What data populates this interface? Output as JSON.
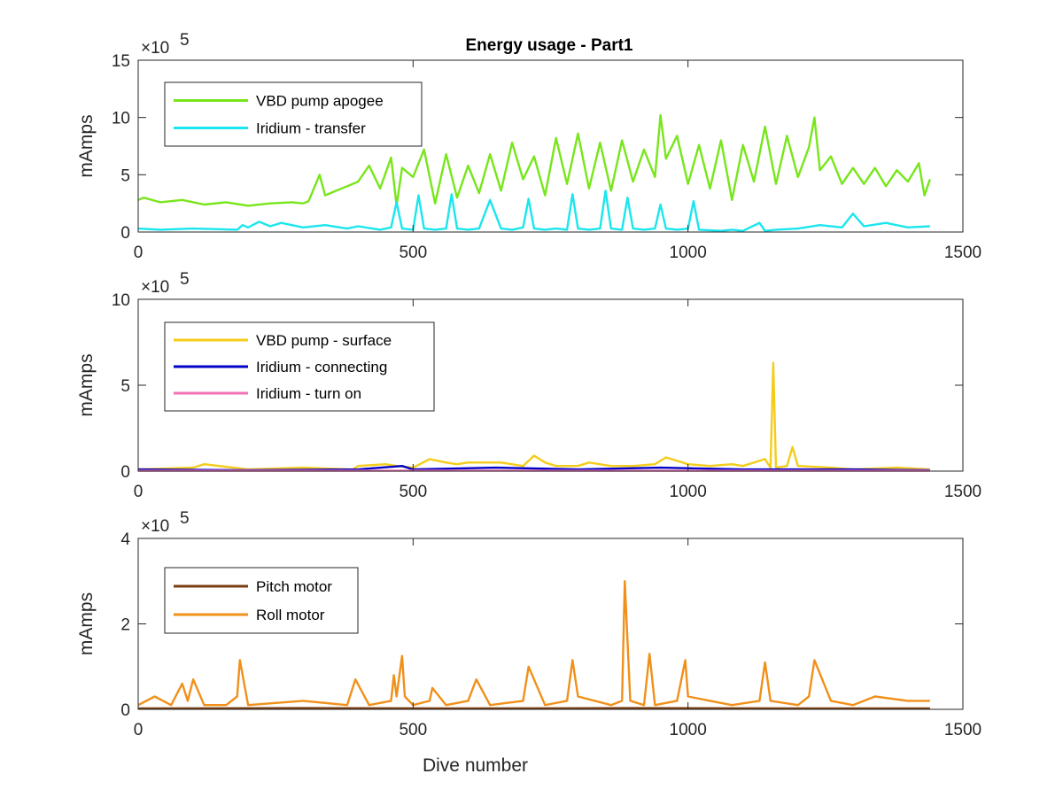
{
  "figure_title": "Energy usage - Part1",
  "chart_data": [
    {
      "type": "line",
      "title": "Energy usage - Part1",
      "xlabel": "",
      "ylabel": "mAmps",
      "exponent_label": "×10",
      "exponent_power": "5",
      "xlim": [
        0,
        1500
      ],
      "ylim": [
        0,
        15
      ],
      "x_ticks": [
        0,
        500,
        1000,
        1500
      ],
      "x_tick_labels": [
        "0",
        "500",
        "1000",
        "1500"
      ],
      "y_ticks": [
        0,
        5,
        10,
        15
      ],
      "y_tick_labels": [
        "0",
        "5",
        "10",
        "15"
      ],
      "legend_position": "top-left",
      "series": [
        {
          "name": "VBD pump apogee",
          "color": "#77e61a",
          "x": [
            0,
            10,
            40,
            80,
            120,
            160,
            200,
            240,
            280,
            300,
            310,
            330,
            340,
            360,
            380,
            400,
            420,
            440,
            460,
            470,
            480,
            500,
            520,
            540,
            560,
            580,
            600,
            620,
            640,
            660,
            680,
            700,
            720,
            740,
            760,
            780,
            800,
            820,
            840,
            860,
            880,
            900,
            920,
            940,
            950,
            960,
            980,
            1000,
            1020,
            1040,
            1060,
            1080,
            1100,
            1120,
            1140,
            1160,
            1180,
            1200,
            1220,
            1230,
            1240,
            1260,
            1280,
            1300,
            1320,
            1340,
            1360,
            1380,
            1400,
            1420,
            1430,
            1440
          ],
          "values": [
            2.8,
            3.0,
            2.6,
            2.8,
            2.4,
            2.6,
            2.3,
            2.5,
            2.6,
            2.5,
            2.7,
            5.0,
            3.2,
            3.6,
            4.0,
            4.4,
            5.8,
            3.8,
            6.5,
            2.3,
            5.6,
            4.8,
            7.2,
            2.5,
            6.8,
            3.0,
            5.8,
            3.4,
            6.8,
            3.6,
            7.8,
            4.6,
            6.6,
            3.2,
            8.2,
            4.2,
            8.6,
            3.8,
            7.8,
            3.6,
            8.0,
            4.4,
            7.2,
            4.8,
            10.2,
            6.4,
            8.4,
            4.2,
            7.6,
            3.8,
            8.0,
            2.8,
            7.6,
            4.4,
            9.2,
            4.2,
            8.4,
            4.8,
            7.4,
            10.0,
            5.4,
            6.6,
            4.2,
            5.6,
            4.2,
            5.6,
            4.0,
            5.4,
            4.4,
            6.0,
            3.2,
            4.6
          ]
        },
        {
          "name": "Iridium - transfer",
          "color": "#1ae6ee",
          "x": [
            0,
            40,
            100,
            180,
            190,
            200,
            220,
            240,
            260,
            300,
            340,
            380,
            400,
            440,
            460,
            470,
            480,
            500,
            510,
            520,
            540,
            560,
            570,
            580,
            600,
            620,
            640,
            660,
            680,
            700,
            710,
            720,
            740,
            760,
            780,
            790,
            800,
            820,
            840,
            850,
            860,
            880,
            890,
            900,
            920,
            940,
            950,
            960,
            980,
            1000,
            1010,
            1020,
            1060,
            1080,
            1100,
            1130,
            1140,
            1160,
            1200,
            1240,
            1280,
            1300,
            1320,
            1360,
            1400,
            1440
          ],
          "values": [
            0.3,
            0.2,
            0.3,
            0.2,
            0.6,
            0.4,
            0.9,
            0.5,
            0.8,
            0.4,
            0.6,
            0.3,
            0.5,
            0.2,
            0.4,
            2.6,
            0.3,
            0.2,
            3.2,
            0.3,
            0.2,
            0.3,
            3.3,
            0.3,
            0.2,
            0.3,
            2.8,
            0.3,
            0.2,
            0.4,
            2.9,
            0.3,
            0.2,
            0.3,
            0.2,
            3.3,
            0.3,
            0.2,
            0.3,
            3.6,
            0.3,
            0.2,
            3.0,
            0.3,
            0.2,
            0.3,
            2.4,
            0.3,
            0.2,
            0.3,
            2.7,
            0.2,
            0.1,
            0.2,
            0.1,
            0.8,
            0.1,
            0.2,
            0.3,
            0.6,
            0.4,
            1.6,
            0.5,
            0.8,
            0.4,
            0.5
          ]
        }
      ]
    },
    {
      "type": "line",
      "title": "",
      "xlabel": "",
      "ylabel": "mAmps",
      "exponent_label": "×10",
      "exponent_power": "5",
      "xlim": [
        0,
        1500
      ],
      "ylim": [
        0,
        10
      ],
      "x_ticks": [
        0,
        500,
        1000,
        1500
      ],
      "x_tick_labels": [
        "0",
        "500",
        "1000",
        "1500"
      ],
      "y_ticks": [
        0,
        5,
        10
      ],
      "y_tick_labels": [
        "0",
        "5",
        "10"
      ],
      "legend_position": "top-left",
      "series": [
        {
          "name": "VBD pump - surface",
          "color": "#f5cc1a",
          "x": [
            0,
            100,
            120,
            200,
            300,
            390,
            400,
            450,
            470,
            500,
            530,
            560,
            580,
            600,
            640,
            660,
            700,
            720,
            740,
            760,
            800,
            820,
            860,
            900,
            940,
            960,
            1000,
            1040,
            1080,
            1100,
            1140,
            1150,
            1155,
            1160,
            1180,
            1190,
            1200,
            1260,
            1300,
            1380,
            1440
          ],
          "values": [
            0.1,
            0.2,
            0.4,
            0.1,
            0.2,
            0.1,
            0.3,
            0.4,
            0.3,
            0.2,
            0.7,
            0.5,
            0.4,
            0.5,
            0.5,
            0.5,
            0.3,
            0.9,
            0.5,
            0.3,
            0.3,
            0.5,
            0.3,
            0.3,
            0.4,
            0.8,
            0.4,
            0.3,
            0.4,
            0.3,
            0.7,
            0.2,
            6.3,
            0.2,
            0.3,
            1.4,
            0.3,
            0.2,
            0.1,
            0.2,
            0.1
          ]
        },
        {
          "name": "Iridium - connecting",
          "color": "#0000c8",
          "x": [
            0,
            200,
            400,
            480,
            500,
            650,
            800,
            950,
            1100,
            1300,
            1440
          ],
          "values": [
            0.1,
            0.05,
            0.1,
            0.3,
            0.1,
            0.2,
            0.1,
            0.2,
            0.1,
            0.1,
            0.05
          ]
        },
        {
          "name": "Iridium - turn on",
          "color": "#f272b6",
          "x": [
            0,
            300,
            600,
            900,
            1200,
            1440
          ],
          "values": [
            0.02,
            0.02,
            0.03,
            0.02,
            0.02,
            0.02
          ]
        }
      ]
    },
    {
      "type": "line",
      "title": "",
      "xlabel": "Dive number",
      "ylabel": "mAmps",
      "exponent_label": "×10",
      "exponent_power": "5",
      "xlim": [
        0,
        1500
      ],
      "ylim": [
        0,
        4
      ],
      "x_ticks": [
        0,
        500,
        1000,
        1500
      ],
      "x_tick_labels": [
        "0",
        "500",
        "1000",
        "1500"
      ],
      "y_ticks": [
        0,
        2,
        4
      ],
      "y_tick_labels": [
        "0",
        "2",
        "4"
      ],
      "legend_position": "top-left",
      "series": [
        {
          "name": "Pitch motor",
          "color": "#7a3d10",
          "x": [
            0,
            300,
            600,
            900,
            1200,
            1440
          ],
          "values": [
            0.02,
            0.03,
            0.02,
            0.03,
            0.02,
            0.02
          ]
        },
        {
          "name": "Roll motor",
          "color": "#f0901a",
          "x": [
            0,
            30,
            60,
            80,
            90,
            100,
            120,
            160,
            180,
            185,
            200,
            300,
            380,
            395,
            420,
            460,
            465,
            470,
            480,
            485,
            500,
            530,
            535,
            560,
            600,
            615,
            640,
            700,
            710,
            740,
            780,
            790,
            800,
            860,
            880,
            885,
            895,
            920,
            930,
            940,
            980,
            995,
            1000,
            1040,
            1080,
            1130,
            1140,
            1150,
            1200,
            1220,
            1230,
            1260,
            1300,
            1340,
            1400,
            1440
          ],
          "values": [
            0.1,
            0.3,
            0.1,
            0.6,
            0.2,
            0.7,
            0.1,
            0.1,
            0.3,
            1.15,
            0.1,
            0.2,
            0.1,
            0.7,
            0.1,
            0.2,
            0.8,
            0.3,
            1.25,
            0.3,
            0.1,
            0.2,
            0.5,
            0.1,
            0.2,
            0.7,
            0.1,
            0.2,
            1.0,
            0.1,
            0.2,
            1.15,
            0.3,
            0.1,
            0.2,
            3.0,
            0.2,
            0.1,
            1.3,
            0.1,
            0.2,
            1.15,
            0.3,
            0.2,
            0.1,
            0.2,
            1.1,
            0.2,
            0.1,
            0.3,
            1.15,
            0.2,
            0.1,
            0.3,
            0.2,
            0.2
          ]
        }
      ]
    }
  ]
}
